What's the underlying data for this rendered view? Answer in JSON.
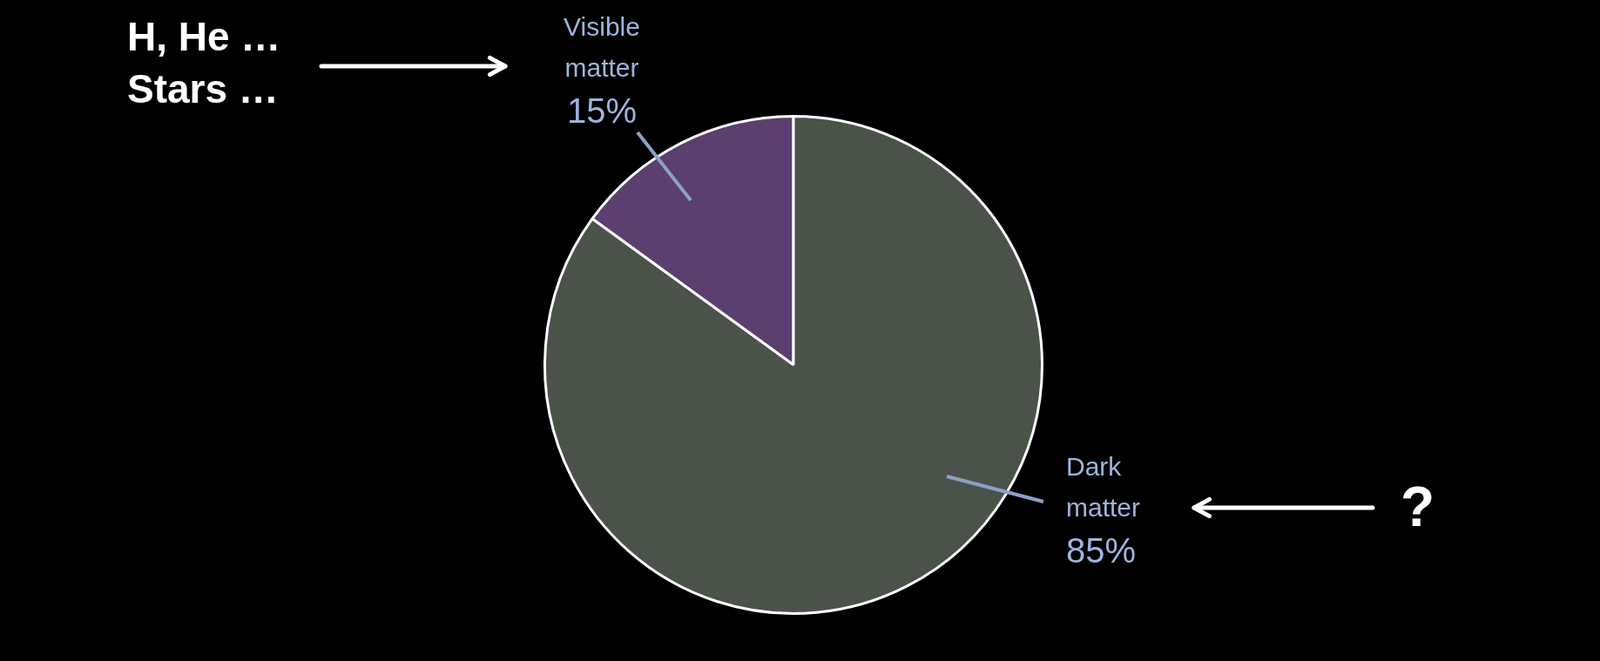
{
  "chart_data": {
    "type": "pie",
    "categories": [
      "Visible matter",
      "Dark matter"
    ],
    "values": [
      15,
      85
    ],
    "value_labels": [
      "15%",
      "85%"
    ],
    "colors": [
      "#5b3f6e",
      "#4b524a"
    ],
    "data_labels": true,
    "annotations": [
      {
        "lines": [
          "H, He …",
          "Stars …"
        ],
        "points_to": "Visible matter"
      },
      {
        "lines": [
          "?"
        ],
        "points_to": "Dark matter"
      }
    ]
  }
}
